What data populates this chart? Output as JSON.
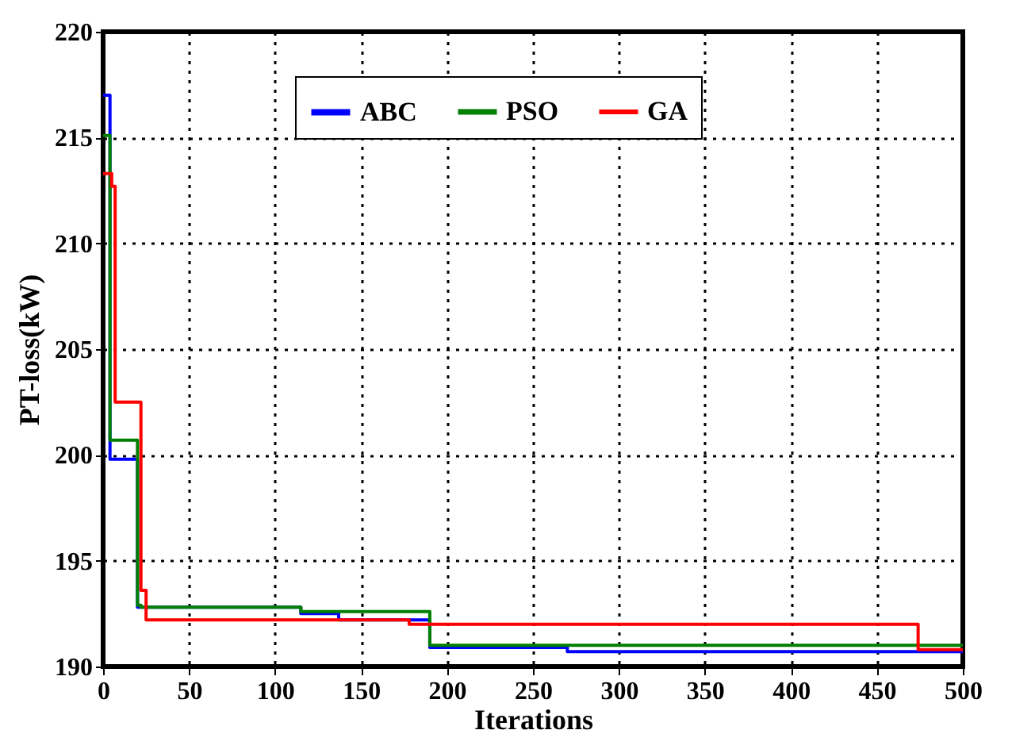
{
  "chart_data": {
    "type": "step",
    "xlabel": "Iterations",
    "ylabel": "PT-loss(kW)",
    "xlim": [
      0,
      500
    ],
    "ylim": [
      190,
      220
    ],
    "xticks": [
      0,
      50,
      100,
      150,
      200,
      250,
      300,
      350,
      400,
      450,
      500
    ],
    "yticks": [
      190,
      195,
      200,
      205,
      210,
      215,
      220
    ],
    "grid": true,
    "legend": "top",
    "line_style": "solid",
    "marker": "none",
    "series": [
      {
        "name": "ABC",
        "color": "#0000ff",
        "x": [
          0,
          4,
          20,
          115,
          137,
          190,
          270,
          500
        ],
        "values": [
          217,
          199.8,
          192.8,
          192.5,
          192.2,
          190.9,
          190.7,
          190.7
        ]
      },
      {
        "name": "PSO",
        "color": "#008000",
        "x": [
          0,
          4,
          20,
          22,
          115,
          190,
          500
        ],
        "values": [
          215.1,
          200.7,
          192.9,
          192.8,
          192.6,
          191.0,
          191.0
        ]
      },
      {
        "name": "GA",
        "color": "#ff0000",
        "x": [
          0,
          5,
          7,
          22,
          25,
          178,
          474,
          500
        ],
        "values": [
          213.3,
          212.7,
          202.5,
          193.6,
          192.2,
          192.0,
          190.8,
          190.8
        ]
      }
    ]
  }
}
